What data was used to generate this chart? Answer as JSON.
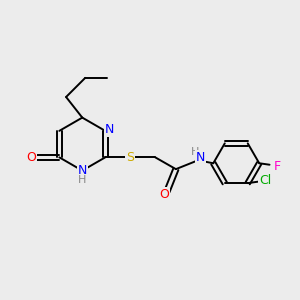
{
  "bg_color": "#ececec",
  "bond_color": "#000000",
  "atom_colors": {
    "N": "#0000ff",
    "O": "#ff0000",
    "S": "#ccaa00",
    "Cl": "#00aa00",
    "F": "#ff00cc",
    "H": "#888888",
    "C": "#000000"
  },
  "figsize": [
    3.0,
    3.0
  ],
  "dpi": 100
}
